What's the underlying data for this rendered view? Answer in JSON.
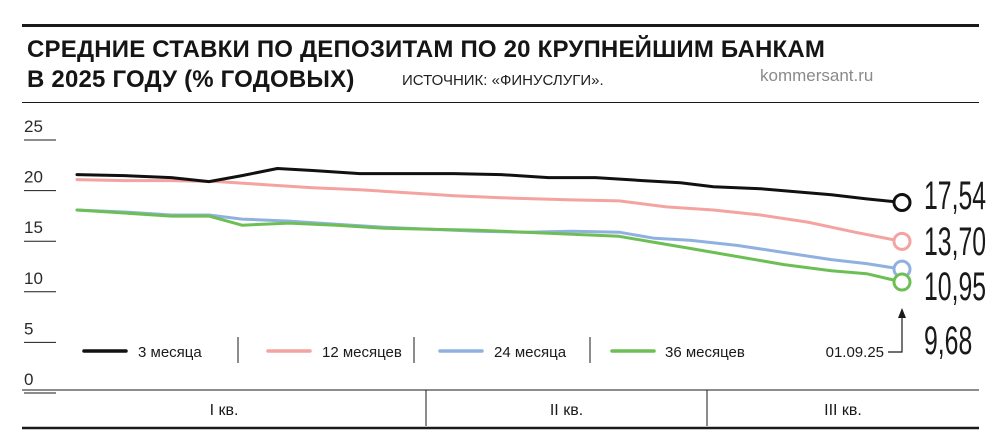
{
  "header": {
    "title_line1": "СРЕДНИЕ СТАВКИ ПО ДЕПОЗИТАМ ПО 20 КРУПНЕЙШИМ БАНКАМ",
    "title_line2": "В 2025 ГОДУ (% ГОДОВЫХ)",
    "source": "ИСТОЧНИК: «ФИНУСЛУГИ».",
    "site": "kommersant.ru"
  },
  "chart_data": {
    "type": "line",
    "title": "СРЕДНИЕ СТАВКИ ПО ДЕПОЗИТАМ ПО 20 КРУПНЕЙШИМ БАНКАМ В 2025 ГОДУ (% ГОДОВЫХ)",
    "ylim": [
      0,
      25
    ],
    "yticks": [
      "25",
      "20",
      "15",
      "10",
      "5",
      "0"
    ],
    "ytick_values": [
      25,
      20,
      15,
      10,
      5,
      0
    ],
    "xlim": [
      0,
      35
    ],
    "quarters": [
      "I кв.",
      "II кв.",
      "III кв."
    ],
    "quarter_bounds": [
      0,
      13,
      26,
      35
    ],
    "grid": false,
    "legend_position": "bottom",
    "end_date": "01.09.25",
    "series": [
      {
        "name": "3 месяца",
        "color": "#111111",
        "end_label": "17,54",
        "x": [
          0,
          2,
          4,
          5.6,
          7,
          8.5,
          10,
          12,
          14,
          16,
          18,
          20,
          22,
          24,
          25.6,
          27,
          29,
          30.5,
          32,
          33.5,
          35
        ],
        "y": [
          20.3,
          20.2,
          20.0,
          19.6,
          20.2,
          20.9,
          20.7,
          20.4,
          20.4,
          20.4,
          20.3,
          20.0,
          20.0,
          19.7,
          19.5,
          19.1,
          18.9,
          18.6,
          18.3,
          17.9,
          17.54
        ]
      },
      {
        "name": "12 месяцев",
        "color": "#f4a3a0",
        "end_label": "13,70",
        "x": [
          0,
          2,
          4,
          6,
          8,
          10,
          12,
          14,
          16,
          18,
          19.5,
          21,
          23,
          25,
          27,
          29,
          31,
          33,
          35
        ],
        "y": [
          19.8,
          19.7,
          19.7,
          19.6,
          19.3,
          19.0,
          18.8,
          18.5,
          18.2,
          18.0,
          17.9,
          17.8,
          17.7,
          17.1,
          16.8,
          16.3,
          15.6,
          14.6,
          13.7
        ]
      },
      {
        "name": "24 месяца",
        "color": "#8fb1e0",
        "end_label": "10,95",
        "x": [
          0,
          2,
          4,
          5.6,
          7,
          9,
          11,
          13,
          15,
          17,
          19,
          21,
          23,
          24.5,
          26,
          28,
          30,
          32,
          33.5,
          35
        ],
        "y": [
          16.8,
          16.6,
          16.3,
          16.3,
          15.9,
          15.7,
          15.4,
          15.1,
          14.9,
          14.7,
          14.6,
          14.7,
          14.6,
          14.0,
          13.8,
          13.3,
          12.6,
          11.9,
          11.5,
          10.95
        ]
      },
      {
        "name": "36 месяцев",
        "color": "#6dbf55",
        "end_label": "9,68",
        "x": [
          0,
          2,
          4,
          5.6,
          7,
          9,
          11,
          13,
          15,
          17,
          19,
          21,
          23,
          24.5,
          26,
          28,
          30,
          32,
          33.5,
          35
        ],
        "y": [
          16.8,
          16.5,
          16.2,
          16.2,
          15.3,
          15.5,
          15.3,
          15.0,
          14.9,
          14.8,
          14.6,
          14.4,
          14.2,
          13.6,
          13.0,
          12.2,
          11.4,
          10.8,
          10.5,
          9.68
        ]
      }
    ]
  }
}
